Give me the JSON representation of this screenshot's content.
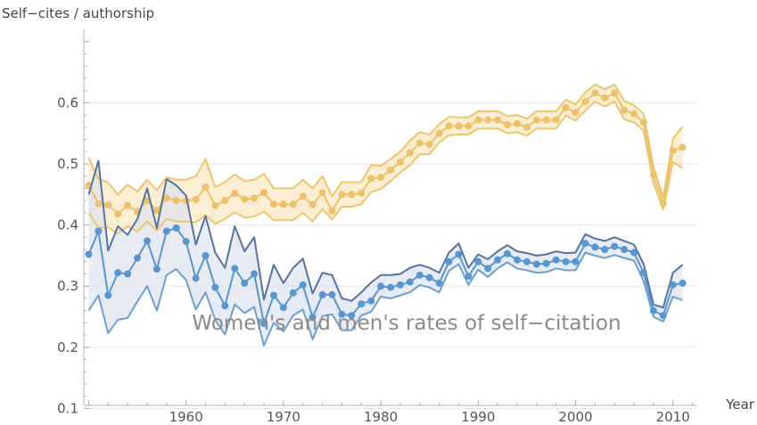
{
  "chart_data": {
    "type": "line",
    "title": "",
    "ylabel": "Self−cites / authorship",
    "xlabel": "Year",
    "annotation": "Women's and men's rates of self−citation",
    "xlim": [
      1949.5,
      2012.5
    ],
    "ylim": [
      0.105,
      0.72
    ],
    "x_ticks": [
      1960,
      1970,
      1980,
      1990,
      2000,
      2010
    ],
    "y_ticks": [
      0.1,
      0.2,
      0.3,
      0.4,
      0.5,
      0.6
    ],
    "grid": "horizontal",
    "colors": {
      "men_fill": "#fbe7bf",
      "men_line": "#efc56a",
      "men_point": "#edc16a",
      "women_fill": "#dde3ef",
      "women_upper": "#56729f",
      "women_lower": "#6d9fd0",
      "women_point": "#5896d0",
      "grid": "#e6e6e6",
      "axis": "#b3b3b3"
    },
    "series": [
      {
        "key": "men",
        "x": [
          1950,
          1951,
          1952,
          1953,
          1954,
          1955,
          1956,
          1957,
          1958,
          1959,
          1960,
          1961,
          1962,
          1963,
          1964,
          1965,
          1966,
          1967,
          1968,
          1969,
          1970,
          1971,
          1972,
          1973,
          1974,
          1975,
          1976,
          1977,
          1978,
          1979,
          1980,
          1981,
          1982,
          1983,
          1984,
          1985,
          1986,
          1987,
          1988,
          1989,
          1990,
          1991,
          1992,
          1993,
          1994,
          1995,
          1996,
          1997,
          1998,
          1999,
          2000,
          2001,
          2002,
          2003,
          2004,
          2005,
          2006,
          2007,
          2008,
          2009,
          2010,
          2011
        ],
        "values": [
          0.465,
          0.435,
          0.433,
          0.418,
          0.432,
          0.422,
          0.44,
          0.424,
          0.444,
          0.44,
          0.44,
          0.442,
          0.462,
          0.432,
          0.44,
          0.452,
          0.442,
          0.444,
          0.453,
          0.434,
          0.434,
          0.434,
          0.447,
          0.433,
          0.453,
          0.423,
          0.45,
          0.45,
          0.452,
          0.476,
          0.478,
          0.49,
          0.503,
          0.518,
          0.534,
          0.532,
          0.55,
          0.562,
          0.562,
          0.562,
          0.572,
          0.572,
          0.572,
          0.564,
          0.566,
          0.56,
          0.572,
          0.572,
          0.572,
          0.592,
          0.584,
          0.602,
          0.616,
          0.608,
          0.616,
          0.588,
          0.582,
          0.568,
          0.482,
          0.435,
          0.522,
          0.527
        ],
        "upper": [
          0.51,
          0.475,
          0.47,
          0.45,
          0.466,
          0.455,
          0.474,
          0.457,
          0.478,
          0.474,
          0.474,
          0.48,
          0.508,
          0.462,
          0.47,
          0.483,
          0.472,
          0.474,
          0.484,
          0.46,
          0.46,
          0.46,
          0.474,
          0.46,
          0.48,
          0.447,
          0.47,
          0.47,
          0.47,
          0.498,
          0.497,
          0.508,
          0.52,
          0.538,
          0.552,
          0.548,
          0.565,
          0.577,
          0.576,
          0.576,
          0.586,
          0.586,
          0.586,
          0.578,
          0.58,
          0.574,
          0.586,
          0.586,
          0.586,
          0.605,
          0.597,
          0.617,
          0.63,
          0.622,
          0.63,
          0.603,
          0.596,
          0.582,
          0.495,
          0.445,
          0.541,
          0.561
        ],
        "lower": [
          0.42,
          0.395,
          0.396,
          0.386,
          0.398,
          0.389,
          0.406,
          0.391,
          0.41,
          0.406,
          0.406,
          0.404,
          0.416,
          0.402,
          0.41,
          0.421,
          0.412,
          0.414,
          0.422,
          0.408,
          0.408,
          0.408,
          0.42,
          0.406,
          0.426,
          0.409,
          0.43,
          0.43,
          0.434,
          0.454,
          0.459,
          0.472,
          0.486,
          0.498,
          0.516,
          0.516,
          0.535,
          0.547,
          0.548,
          0.548,
          0.558,
          0.558,
          0.558,
          0.55,
          0.552,
          0.546,
          0.558,
          0.558,
          0.558,
          0.579,
          0.571,
          0.587,
          0.602,
          0.594,
          0.602,
          0.573,
          0.568,
          0.554,
          0.469,
          0.425,
          0.503,
          0.493
        ]
      },
      {
        "key": "women",
        "x": [
          1950,
          1951,
          1952,
          1953,
          1954,
          1955,
          1956,
          1957,
          1958,
          1959,
          1960,
          1961,
          1962,
          1963,
          1964,
          1965,
          1966,
          1967,
          1968,
          1969,
          1970,
          1971,
          1972,
          1973,
          1974,
          1975,
          1976,
          1977,
          1978,
          1979,
          1980,
          1981,
          1982,
          1983,
          1984,
          1985,
          1986,
          1987,
          1988,
          1989,
          1990,
          1991,
          1992,
          1993,
          1994,
          1995,
          1996,
          1997,
          1998,
          1999,
          2000,
          2001,
          2002,
          2003,
          2004,
          2005,
          2006,
          2007,
          2008,
          2009,
          2010,
          2011
        ],
        "values": [
          0.352,
          0.39,
          0.285,
          0.322,
          0.32,
          0.346,
          0.374,
          0.328,
          0.39,
          0.395,
          0.373,
          0.313,
          0.35,
          0.298,
          0.268,
          0.329,
          0.305,
          0.32,
          0.239,
          0.285,
          0.265,
          0.289,
          0.302,
          0.249,
          0.286,
          0.286,
          0.254,
          0.252,
          0.271,
          0.276,
          0.3,
          0.298,
          0.302,
          0.307,
          0.318,
          0.314,
          0.305,
          0.34,
          0.352,
          0.316,
          0.34,
          0.329,
          0.343,
          0.353,
          0.343,
          0.34,
          0.336,
          0.337,
          0.343,
          0.34,
          0.34,
          0.37,
          0.364,
          0.36,
          0.365,
          0.36,
          0.355,
          0.322,
          0.26,
          0.252,
          0.302,
          0.305
        ],
        "upper": [
          0.45,
          0.505,
          0.358,
          0.398,
          0.384,
          0.41,
          0.46,
          0.395,
          0.475,
          0.465,
          0.448,
          0.368,
          0.415,
          0.355,
          0.33,
          0.398,
          0.357,
          0.38,
          0.278,
          0.335,
          0.305,
          0.33,
          0.345,
          0.288,
          0.322,
          0.318,
          0.28,
          0.276,
          0.29,
          0.306,
          0.318,
          0.318,
          0.32,
          0.33,
          0.335,
          0.33,
          0.322,
          0.355,
          0.37,
          0.33,
          0.352,
          0.344,
          0.357,
          0.367,
          0.357,
          0.354,
          0.35,
          0.352,
          0.357,
          0.354,
          0.355,
          0.385,
          0.378,
          0.374,
          0.38,
          0.374,
          0.368,
          0.336,
          0.27,
          0.265,
          0.322,
          0.335
        ],
        "lower": [
          0.26,
          0.285,
          0.223,
          0.245,
          0.248,
          0.275,
          0.3,
          0.26,
          0.318,
          0.328,
          0.31,
          0.262,
          0.29,
          0.245,
          0.221,
          0.27,
          0.256,
          0.266,
          0.203,
          0.24,
          0.226,
          0.252,
          0.262,
          0.213,
          0.251,
          0.254,
          0.228,
          0.228,
          0.252,
          0.258,
          0.283,
          0.28,
          0.285,
          0.29,
          0.302,
          0.298,
          0.29,
          0.325,
          0.336,
          0.302,
          0.327,
          0.315,
          0.329,
          0.339,
          0.329,
          0.326,
          0.322,
          0.323,
          0.329,
          0.326,
          0.326,
          0.355,
          0.35,
          0.346,
          0.351,
          0.346,
          0.342,
          0.308,
          0.25,
          0.242,
          0.283,
          0.277
        ]
      }
    ]
  }
}
